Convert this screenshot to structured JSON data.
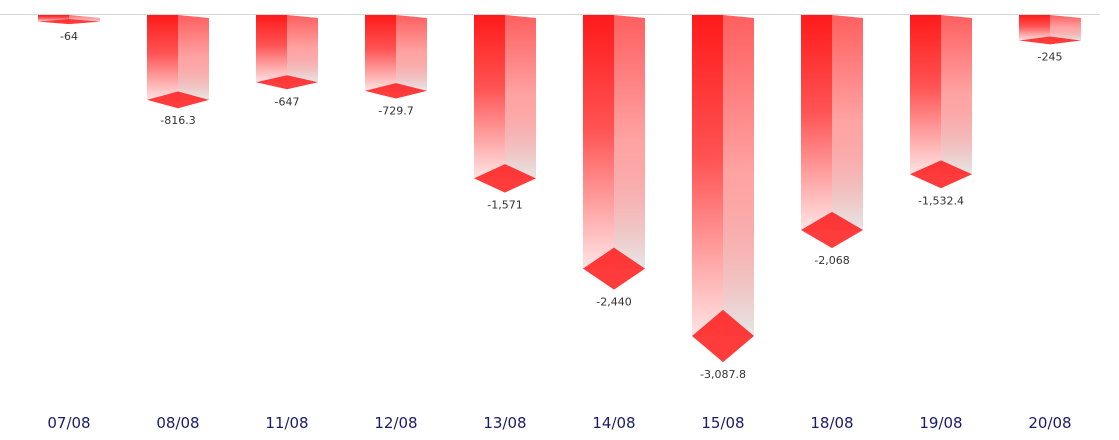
{
  "chart_data": {
    "type": "bar",
    "categories": [
      "07/08",
      "08/08",
      "11/08",
      "12/08",
      "13/08",
      "14/08",
      "15/08",
      "18/08",
      "19/08",
      "20/08"
    ],
    "values": [
      -64,
      -816.3,
      -647,
      -729.7,
      -1571,
      -2440,
      -3087.8,
      -2068,
      -1532.4,
      -245
    ],
    "value_labels": [
      "-64",
      "-816.3",
      "-647",
      "-729.7",
      "-1,571",
      "-2,440",
      "-3,087.8",
      "-2,068",
      "-1,532.4",
      "-245"
    ],
    "color": "#ff1a1a"
  }
}
